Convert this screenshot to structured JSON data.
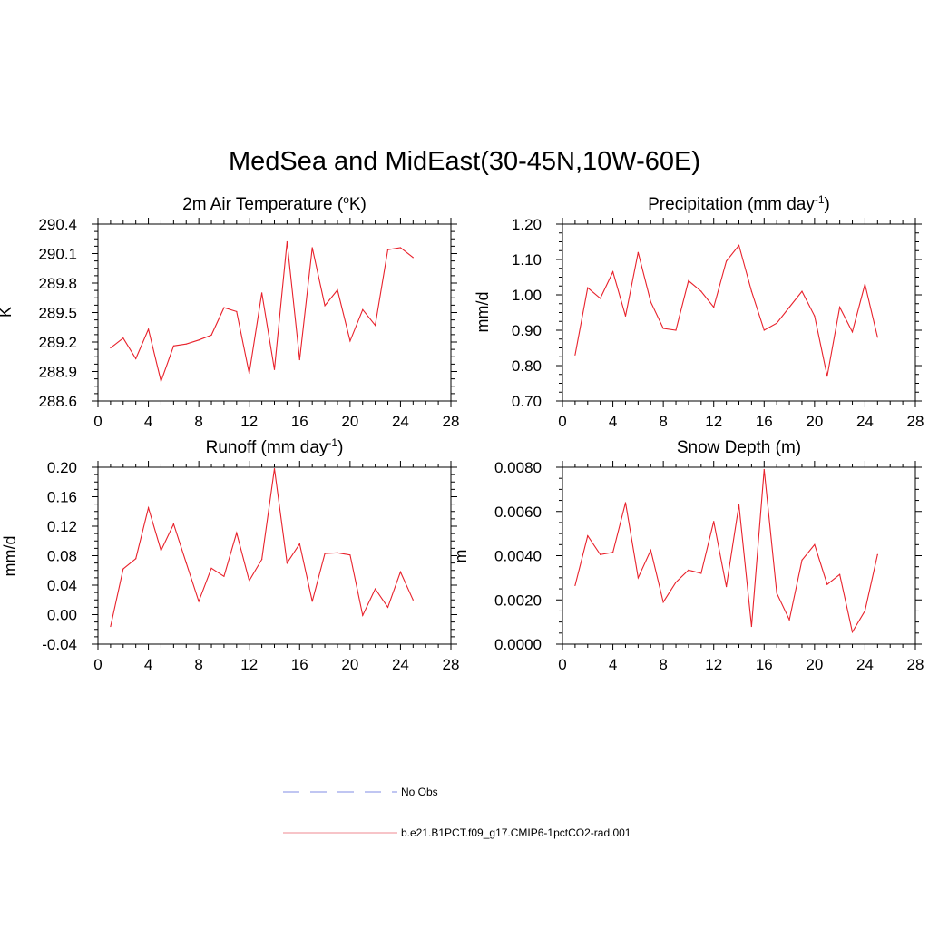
{
  "title": "MedSea and MidEast(30-45N,10W-60E)",
  "line_color": "#e8212b",
  "legend": [
    {
      "label": "No Obs",
      "color": "#9ba3ea",
      "style": "dashed"
    },
    {
      "label": "b.e21.B1PCT.f09_g17.CMIP6-1pctCO2-rad.001",
      "color": "#f2a0a8",
      "style": "solid"
    }
  ],
  "chart_data": [
    {
      "type": "line",
      "title": "2m Air Temperature (oK)",
      "title_main": "2m Air Temperature (",
      "title_sup": "o",
      "title_end": "K)",
      "ylabel": "K",
      "xlim": [
        0,
        28
      ],
      "ylim": [
        288.6,
        290.4
      ],
      "xticks": [
        0,
        4,
        8,
        12,
        16,
        20,
        24,
        28
      ],
      "yticks": [
        "288.6",
        "288.9",
        "289.2",
        "289.5",
        "289.8",
        "290.1",
        "290.4"
      ],
      "x": [
        1,
        2,
        3,
        4,
        5,
        6,
        7,
        8,
        9,
        10,
        11,
        12,
        13,
        14,
        15,
        16,
        17,
        18,
        19,
        20,
        21,
        22,
        23,
        24,
        25
      ],
      "values": [
        289.14,
        289.24,
        289.03,
        289.33,
        288.8,
        289.16,
        289.18,
        289.22,
        289.27,
        289.55,
        289.51,
        288.88,
        289.7,
        288.92,
        290.22,
        289.02,
        290.16,
        289.57,
        289.73,
        289.21,
        289.53,
        289.37,
        290.14,
        290.16,
        290.06
      ]
    },
    {
      "type": "line",
      "title": "Precipitation (mm day-1)",
      "title_main": "Precipitation (mm day",
      "title_sup": "-1",
      "title_end": ")",
      "ylabel": "mm/d",
      "xlim": [
        0,
        28
      ],
      "ylim": [
        0.7,
        1.2
      ],
      "xticks": [
        0,
        4,
        8,
        12,
        16,
        20,
        24,
        28
      ],
      "yticks": [
        "0.70",
        "0.80",
        "0.90",
        "1.00",
        "1.10",
        "1.20"
      ],
      "x": [
        1,
        2,
        3,
        4,
        5,
        6,
        7,
        8,
        9,
        10,
        11,
        12,
        13,
        14,
        15,
        16,
        17,
        18,
        19,
        20,
        21,
        22,
        23,
        24,
        25
      ],
      "values": [
        0.83,
        1.02,
        0.99,
        1.065,
        0.94,
        1.12,
        0.98,
        0.905,
        0.9,
        1.04,
        1.01,
        0.965,
        1.095,
        1.14,
        1.01,
        0.9,
        0.92,
        0.965,
        1.01,
        0.94,
        0.77,
        0.965,
        0.895,
        1.03,
        0.88
      ]
    },
    {
      "type": "line",
      "title": "Runoff (mm day-1)",
      "title_main": "Runoff (mm day",
      "title_sup": "-1",
      "title_end": ")",
      "ylabel": "mm/d",
      "xlim": [
        0,
        28
      ],
      "ylim": [
        -0.04,
        0.2
      ],
      "xticks": [
        0,
        4,
        8,
        12,
        16,
        20,
        24,
        28
      ],
      "yticks": [
        "-0.04",
        "0.00",
        "0.04",
        "0.08",
        "0.12",
        "0.16",
        "0.20"
      ],
      "x": [
        1,
        2,
        3,
        4,
        5,
        6,
        7,
        8,
        9,
        10,
        11,
        12,
        13,
        14,
        15,
        16,
        17,
        18,
        19,
        20,
        21,
        22,
        23,
        24,
        25
      ],
      "values": [
        -0.016,
        0.062,
        0.076,
        0.145,
        0.087,
        0.123,
        0.07,
        0.018,
        0.063,
        0.052,
        0.111,
        0.046,
        0.075,
        0.198,
        0.07,
        0.096,
        0.018,
        0.083,
        0.084,
        0.081,
        -0.001,
        0.035,
        0.01,
        0.058,
        0.02
      ]
    },
    {
      "type": "line",
      "title": "Snow Depth (m)",
      "title_main": "Snow Depth (m)",
      "title_sup": "",
      "title_end": "",
      "ylabel": "m",
      "xlim": [
        0,
        28
      ],
      "ylim": [
        0.0,
        0.008
      ],
      "xticks": [
        0,
        4,
        8,
        12,
        16,
        20,
        24,
        28
      ],
      "yticks": [
        "0.0000",
        "0.0020",
        "0.0040",
        "0.0060",
        "0.0080"
      ],
      "x": [
        1,
        2,
        3,
        4,
        5,
        6,
        7,
        8,
        9,
        10,
        11,
        12,
        13,
        14,
        15,
        16,
        17,
        18,
        19,
        20,
        21,
        22,
        23,
        24,
        25
      ],
      "values": [
        0.00265,
        0.0049,
        0.00405,
        0.00415,
        0.0064,
        0.003,
        0.00425,
        0.0019,
        0.0028,
        0.00335,
        0.0032,
        0.00555,
        0.0026,
        0.0063,
        0.0008,
        0.0079,
        0.0023,
        0.0011,
        0.0038,
        0.0045,
        0.0027,
        0.00315,
        0.00055,
        0.0015,
        0.00405
      ]
    }
  ]
}
